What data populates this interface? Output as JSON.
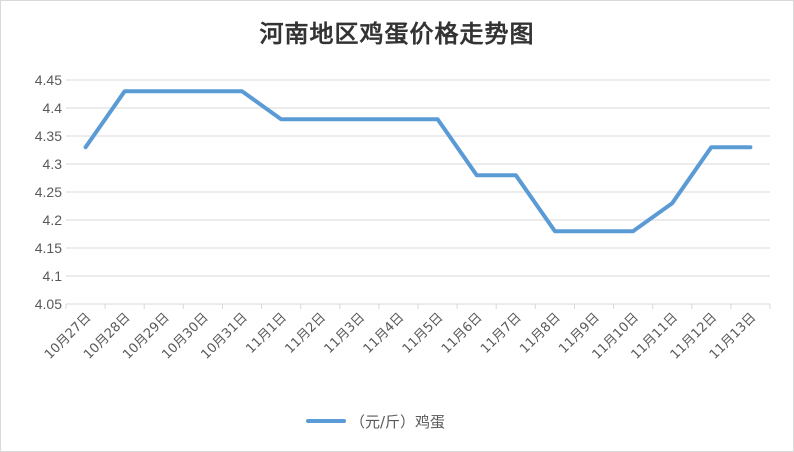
{
  "chart_data": {
    "type": "line",
    "title": "河南地区鸡蛋价格走势图",
    "xlabel": "",
    "ylabel": "",
    "categories": [
      "10月27日",
      "10月28日",
      "10月29日",
      "10月30日",
      "10月31日",
      "11月1日",
      "11月2日",
      "11月3日",
      "11月4日",
      "11月5日",
      "11月6日",
      "11月7日",
      "11月8日",
      "11月9日",
      "11月10日",
      "11月11日",
      "11月12日",
      "11月13日"
    ],
    "series": [
      {
        "name": "（元/斤）鸡蛋",
        "values": [
          4.33,
          4.43,
          4.43,
          4.43,
          4.43,
          4.38,
          4.38,
          4.38,
          4.38,
          4.38,
          4.28,
          4.28,
          4.18,
          4.18,
          4.18,
          4.23,
          4.33,
          4.33
        ],
        "color": "#5b9bd5"
      }
    ],
    "ylim": [
      4.05,
      4.45
    ],
    "yticks": [
      "4.05",
      "4.1",
      "4.15",
      "4.2",
      "4.25",
      "4.3",
      "4.35",
      "4.4",
      "4.45"
    ],
    "grid": true,
    "legend": "bottom",
    "gridColor": "#d9d9d9"
  }
}
